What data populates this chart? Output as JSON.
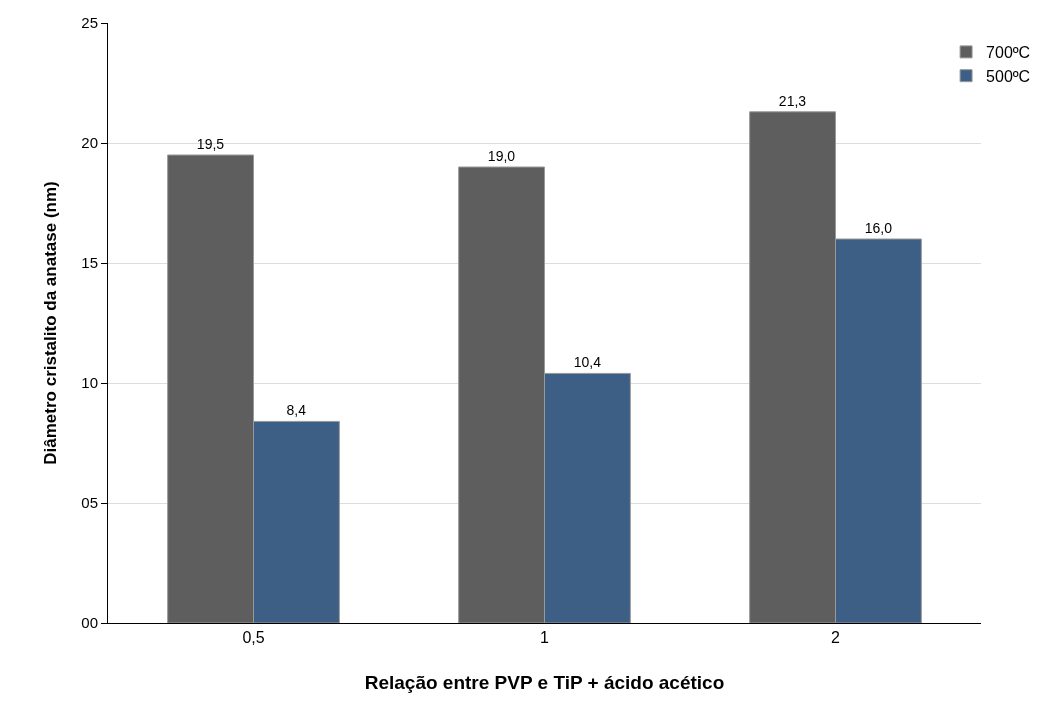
{
  "chart_data": {
    "type": "bar",
    "xlabel": "Relação entre PVP e TiP + ácido acético",
    "ylabel": "Diâmetro cristalito da anatase (nm)",
    "categories": [
      "0,5",
      "1",
      "2"
    ],
    "series": [
      {
        "name": "700ºC",
        "color": "#5e5e5e",
        "values": [
          19.5,
          19.0,
          21.3
        ],
        "value_labels": [
          "19,5",
          "19,0",
          "21,3"
        ]
      },
      {
        "name": "500ºC",
        "color": "#3d5f85",
        "values": [
          8.4,
          10.4,
          16.0
        ],
        "value_labels": [
          "8,4",
          "10,4",
          "16,0"
        ]
      }
    ],
    "ylim": [
      0,
      25
    ],
    "yticks": [
      {
        "value": 0,
        "label": "00"
      },
      {
        "value": 5,
        "label": "05"
      },
      10,
      15,
      20,
      25
    ],
    "grid": "y",
    "legend": "top right"
  }
}
